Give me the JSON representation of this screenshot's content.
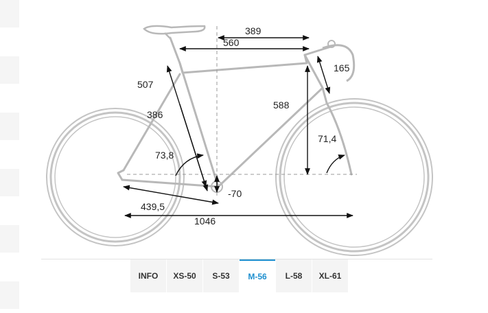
{
  "geometry": {
    "stack": "389",
    "reach_total": "560",
    "stem_length": "165",
    "seat_tube_ct": "507",
    "seat_tube_cc": "386",
    "head_tube_length": "588",
    "seat_angle": "73,8",
    "head_angle": "71,4",
    "bb_drop": "-70",
    "chainstay": "439,5",
    "wheelbase": "1046"
  },
  "size_tabs": [
    {
      "label": "INFO"
    },
    {
      "label": "XS-50"
    },
    {
      "label": "S-53"
    },
    {
      "label": "M-56"
    },
    {
      "label": "L-58"
    },
    {
      "label": "XL-61"
    }
  ],
  "active_tab": "M-56",
  "colors": {
    "frame": "#b8b8b8",
    "dimension": "#111111",
    "accent": "#1d8fcf"
  }
}
